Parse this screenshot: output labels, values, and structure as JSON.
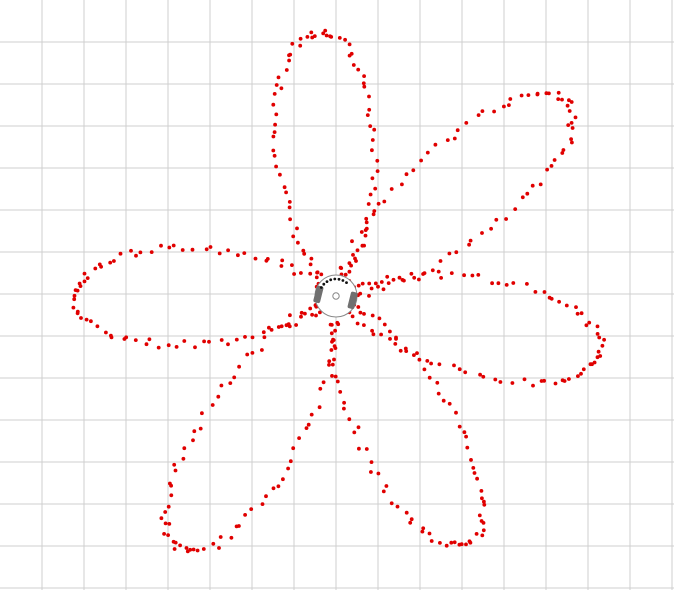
{
  "scene": {
    "background_color": "#ffffff",
    "grid_color": "#cfcfcf",
    "trail_color": "#e00000",
    "robot": {
      "body_color": "#ffffff",
      "outline_color": "#888888",
      "wheel_color": "#707070",
      "sensor_color": "#111111",
      "center_marker_color": "#888888"
    }
  }
}
